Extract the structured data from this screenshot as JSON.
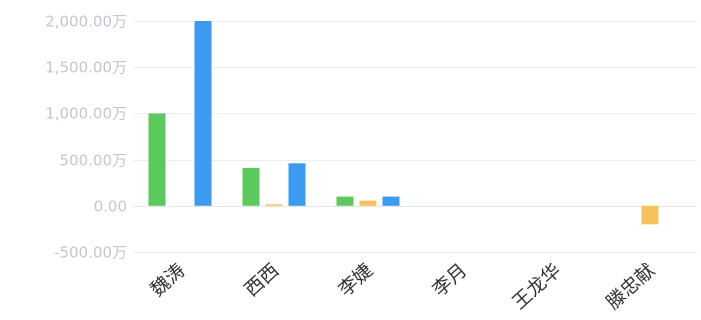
{
  "chart_data": {
    "type": "bar",
    "categories": [
      "魏涛",
      "西西",
      "李婕",
      "李月",
      "王龙华",
      "滕忠献"
    ],
    "series": [
      {
        "values": [
          1000,
          410,
          100,
          0,
          0,
          0
        ],
        "color": "#5cc95c"
      },
      {
        "values": [
          0,
          5,
          55,
          0,
          0,
          -200
        ],
        "color": "#f5c15e"
      },
      {
        "values": [
          2000,
          460,
          100,
          0,
          0,
          0
        ],
        "color": "#3a9bf0"
      }
    ],
    "y_ticks": [
      {
        "value": 2000,
        "label": "2,000.00万"
      },
      {
        "value": 1500,
        "label": "1,500.00万"
      },
      {
        "value": 1000,
        "label": "1,000.00万"
      },
      {
        "value": 500,
        "label": "500.00万"
      },
      {
        "value": 0,
        "label": "0.00"
      },
      {
        "value": -500,
        "label": "-500.00万"
      }
    ],
    "ylim": [
      -500,
      2000
    ],
    "grid": true,
    "legend": "none"
  }
}
